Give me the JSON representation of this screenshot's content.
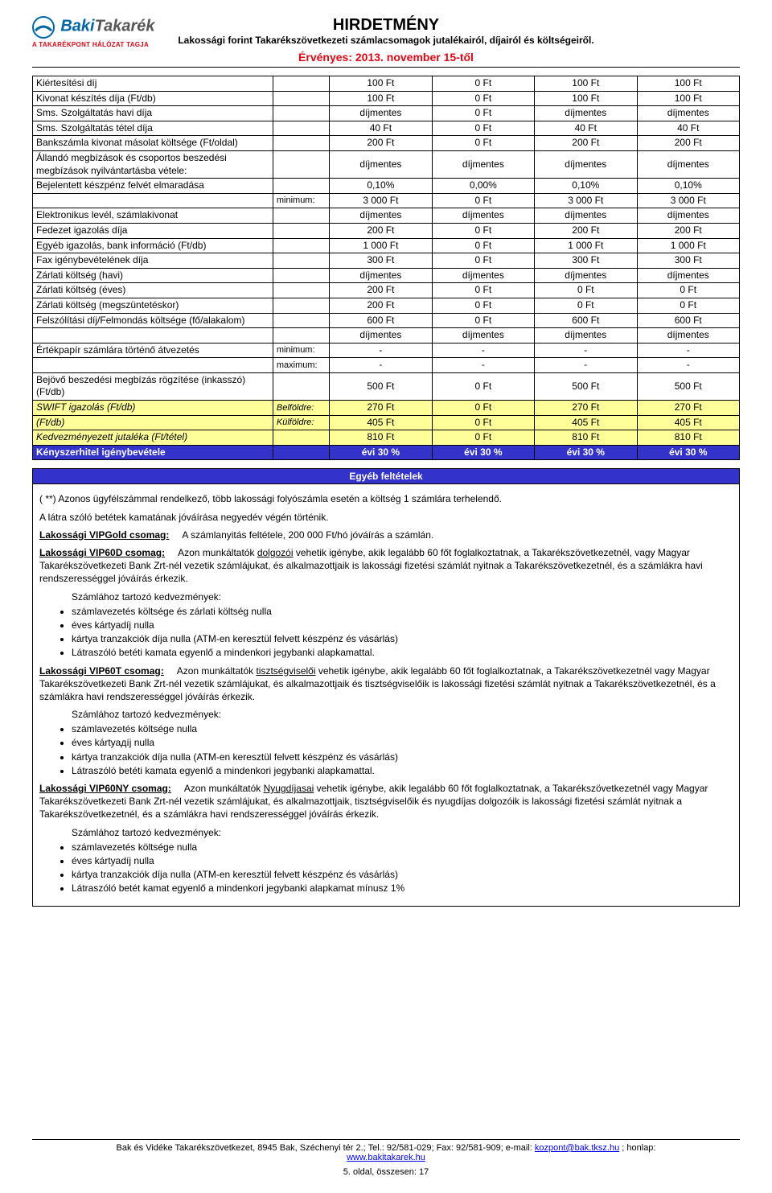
{
  "header": {
    "logo_main": "Baki",
    "logo_second": "Takarék",
    "logo_sub": "A TAKARÉKPONT HÁLÓZAT TAGJA",
    "title": "HIRDETMÉNY",
    "subtitle": "Lakossági forint Takarékszövetkezeti számlacsomagok jutalékairól, díjairól és költségeiről.",
    "validity": "Érvényes: 2013. november 15-től"
  },
  "colors": {
    "brand_blue": "#0066a4",
    "brand_red": "#e30613",
    "row_yellow": "#ffff99",
    "row_blue": "#3333cc",
    "row_blue_text": "#ffffff",
    "link": "#0000ee",
    "border": "#000000"
  },
  "table": {
    "rows": [
      {
        "label": "Kiértesítési díj",
        "prefix": "",
        "v": [
          "100 Ft",
          "0 Ft",
          "100 Ft",
          "100 Ft"
        ]
      },
      {
        "label": "Kivonat készítés díja (Ft/db)",
        "prefix": "",
        "v": [
          "100 Ft",
          "0 Ft",
          "100 Ft",
          "100 Ft"
        ]
      },
      {
        "label": "Sms. Szolgáltatás havi díja",
        "prefix": "",
        "v": [
          "díjmentes",
          "0 Ft",
          "díjmentes",
          "díjmentes"
        ]
      },
      {
        "label": "Sms. Szolgáltatás tétel díja",
        "prefix": "",
        "v": [
          "40 Ft",
          "0 Ft",
          "40 Ft",
          "40 Ft"
        ]
      },
      {
        "label": "Bankszámla kivonat másolat költsége (Ft/oldal)",
        "prefix": "",
        "v": [
          "200 Ft",
          "0 Ft",
          "200 Ft",
          "200 Ft"
        ]
      },
      {
        "label": "Állandó megbízások és csoportos beszedési megbízások nyilvántartásba vétele:",
        "prefix": "",
        "v": [
          "díjmentes",
          "díjmentes",
          "díjmentes",
          "díjmentes"
        ]
      },
      {
        "label": "Bejelentett készpénz felvét elmaradása",
        "prefix": "",
        "v": [
          "0,10%",
          "0,00%",
          "0,10%",
          "0,10%"
        ]
      },
      {
        "label": "",
        "prefix": "minimum:",
        "v": [
          "3 000 Ft",
          "0 Ft",
          "3 000 Ft",
          "3 000 Ft"
        ]
      },
      {
        "label": "Elektronikus levél, számlakivonat",
        "prefix": "",
        "v": [
          "díjmentes",
          "díjmentes",
          "díjmentes",
          "díjmentes"
        ]
      },
      {
        "label": "Fedezet igazolás díja",
        "prefix": "",
        "v": [
          "200 Ft",
          "0 Ft",
          "200 Ft",
          "200 Ft"
        ]
      },
      {
        "label": "Egyéb igazolás, bank információ (Ft/db)",
        "prefix": "",
        "v": [
          "1 000 Ft",
          "0 Ft",
          "1 000 Ft",
          "1 000 Ft"
        ]
      },
      {
        "label": "Fax igénybevételének díja",
        "prefix": "",
        "v": [
          "300 Ft",
          "0 Ft",
          "300 Ft",
          "300 Ft"
        ]
      },
      {
        "label": "Zárlati költség (havi)",
        "prefix": "",
        "v": [
          "díjmentes",
          "díjmentes",
          "díjmentes",
          "díjmentes"
        ]
      },
      {
        "label": "Zárlati költség (éves)",
        "prefix": "",
        "v": [
          "200 Ft",
          "0 Ft",
          "0 Ft",
          "0 Ft"
        ]
      },
      {
        "label": "Zárlati költség (megszüntetéskor)",
        "prefix": "",
        "v": [
          "200 Ft",
          "0 Ft",
          "0 Ft",
          "0 Ft"
        ]
      },
      {
        "label": "Felszólítási díj/Felmondás költsége (fő/alakalom)",
        "prefix": "",
        "v": [
          "600 Ft",
          "0 Ft",
          "600 Ft",
          "600 Ft"
        ]
      },
      {
        "label": "",
        "prefix": "",
        "v": [
          "díjmentes",
          "díjmentes",
          "díjmentes",
          "díjmentes"
        ]
      },
      {
        "label": "Értékpapír számlára történő átvezetés",
        "prefix": "minimum:",
        "v": [
          "-",
          "-",
          "-",
          "-"
        ]
      },
      {
        "label": "",
        "prefix": "maximum:",
        "v": [
          "-",
          "-",
          "-",
          "-"
        ]
      },
      {
        "label": "Bejövő beszedési megbízás rögzítése (inkasszó) (Ft/db)",
        "prefix": "",
        "v": [
          "500 Ft",
          "0 Ft",
          "500 Ft",
          "500 Ft"
        ]
      }
    ],
    "yellow_rows": [
      {
        "label": "SWIFT igazolás           (Ft/db)",
        "prefix": "Belföldre:",
        "v": [
          "270 Ft",
          "0 Ft",
          "270 Ft",
          "270 Ft"
        ]
      },
      {
        "label": "                              (Ft/db)",
        "prefix": "Külföldre:",
        "v": [
          "405 Ft",
          "0 Ft",
          "405 Ft",
          "405 Ft"
        ]
      },
      {
        "label": "Kedvezményezett jutaléka (Ft/tétel)",
        "prefix": "",
        "v": [
          "810 Ft",
          "0 Ft",
          "810 Ft",
          "810 Ft"
        ]
      }
    ],
    "blue_row": {
      "label": "Kényszerhitel igénybevétele",
      "prefix": "",
      "v": [
        "évi 30 %",
        "évi 30 %",
        "évi 30 %",
        "évi 30 %"
      ]
    }
  },
  "conditions": {
    "header": "Egyéb feltételek",
    "intro1": "( **) Azonos ügyfélszámmal rendelkező, több lakossági folyószámla esetén a költség 1 számlára terhelendő.",
    "intro2": "A látra szóló betétek kamatának jóváírása negyedév végén történik.",
    "vipgold_label": "Lakossági VIPGold csomag:",
    "vipgold_text": "A számlanyitás feltétele, 200 000 Ft/hó jóváírás a számlán.",
    "vip60d_label": "Lakossági VIP60D csomag:",
    "vip60d_text": "Azon munkáltatók dolgozói vehetik igénybe, akik legalább 60 főt foglalkoztatnak, a Takarékszövetkezetnél, vagy Magyar Takarékszövetkezeti Bank Zrt-nél vezetik számlájukat, és alkalmazottjaik is lakossági fizetési számlát nyitnak a Takarékszövetkezetnél, és a számlákra havi rendszerességgel jóváírás érkezik.",
    "vip60d_dolgozoi": "dolgozói",
    "benefits_label": "Számlához tartozó kedvezmények:",
    "vip60d_items": [
      "számlavezetés költsége és zárlati költség nulla",
      "éves kártyadíj nulla",
      "kártya tranzakciók díja nulla (ATM-en keresztül felvett készpénz és vásárlás)",
      "Látraszóló betéti kamata egyenlő a mindenkori jegybanki alapkamattal."
    ],
    "vip60t_label": "Lakossági VIP60T csomag:",
    "vip60t_text": "Azon munkáltatók tisztségviselői vehetik igénybe, akik legalább 60 főt foglalkoztatnak, a Takarékszövetkezetnél vagy Magyar Takarékszövetkezeti Bank Zrt-nél vezetik számlájukat, és alkalmazottjaik és tisztségviselőik is lakossági fizetési számlát nyitnak a Takarékszövetkezetnél, és a számlákra havi rendszerességgel jóváírás érkezik.",
    "vip60t_tiszt": "tisztségviselői",
    "vip60t_items": [
      "számlavezetés költsége nulla",
      "éves kártyадíj nulla",
      "kártya tranzakciók díja nulla (ATM-en keresztül felvett készpénz és vásárlás)",
      "Látraszóló betéti kamata egyenlő a mindenkori jegybanki alapkamattal."
    ],
    "vip60ny_label": "Lakossági VIP60NY csomag:",
    "vip60ny_text": "Azon munkáltatók Nyugdíjasai vehetik igénybe, akik legalább 60 főt foglalkoztatnak, a Takarékszövetkezetnél vagy Magyar Takarékszövetkezeti Bank Zrt-nél vezetik számlájukat, és alkalmazottjaik, tisztségviselőik és nyugdíjas dolgozóik is lakossági fizetési számlát nyitnak a Takarékszövetkezetnél, és a számlákra havi rendszerességgel jóváírás érkezik.",
    "vip60ny_nyug": "Nyugdíjasai",
    "vip60ny_items": [
      "számlavezetés költsége nulla",
      "éves kártyadíj nulla",
      "kártya tranzakciók díja nulla (ATM-en keresztül felvett készpénz és vásárlás)",
      "Látraszóló betét kamat egyenlő a mindenkori jegybanki alapkamat mínusz 1%"
    ]
  },
  "footer": {
    "line1a": "Bak és Vidéke Takarékszövetkezet, 8945 Bak, Széchenyi tér 2.; Tel.: 92/581-029; Fax: 92/581-909; e-mail: ",
    "email": "kozpont@bak.tksz.hu",
    "line1b": "; honlap:",
    "url": "www.bakitakarek.hu",
    "page": "5. oldal, összesen: 17"
  }
}
